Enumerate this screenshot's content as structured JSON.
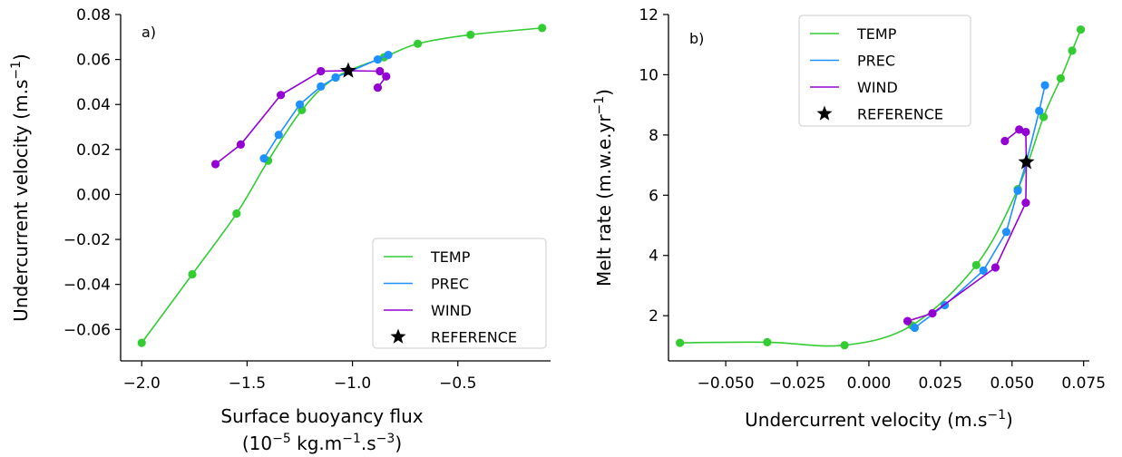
{
  "chart_data": [
    {
      "type": "line",
      "panel_label": "a)",
      "xlabel": "Surface buoyancy flux",
      "xlabel_unit": {
        "pre": "(10",
        "exp1": "−5",
        "mid": " kg.m",
        "exp2": "−1",
        "mid2": ".s",
        "exp3": "−3",
        "post": ")"
      },
      "ylabel": {
        "pre": "Undercurrent velocity (m.s",
        "exp": "−1",
        "post": ")"
      },
      "xlim": [
        -2.1,
        -0.06
      ],
      "ylim": [
        -0.074,
        0.08
      ],
      "xticks": [
        -2.0,
        -1.5,
        -1.0,
        -0.5
      ],
      "xtick_labels": [
        "−2.0",
        "−1.5",
        "−1.0",
        "−0.5"
      ],
      "yticks": [
        -0.06,
        -0.04,
        -0.02,
        0.0,
        0.02,
        0.04,
        0.06,
        0.08
      ],
      "ytick_labels": [
        "−0.06",
        "−0.04",
        "−0.02",
        "0.00",
        "0.02",
        "0.04",
        "0.06",
        "0.08"
      ],
      "grid": false,
      "legend_position": "lower-right",
      "series": [
        {
          "name": "TEMP",
          "color": "#33cc33",
          "smooth": true,
          "points": [
            [
              -2.0,
              -0.066
            ],
            [
              -1.76,
              -0.0355
            ],
            [
              -1.55,
              -0.0085
            ],
            [
              -1.4,
              0.015
            ],
            [
              -1.24,
              0.0375
            ],
            [
              -1.08,
              0.052
            ],
            [
              -0.85,
              0.061
            ],
            [
              -0.69,
              0.067
            ],
            [
              -0.44,
              0.071
            ],
            [
              -0.1,
              0.074
            ]
          ]
        },
        {
          "name": "PREC",
          "color": "#1e90ff",
          "smooth": false,
          "points": [
            [
              -1.42,
              0.016
            ],
            [
              -1.35,
              0.0265
            ],
            [
              -1.25,
              0.04
            ],
            [
              -1.15,
              0.048
            ],
            [
              -1.08,
              0.052
            ],
            [
              -0.88,
              0.06
            ],
            [
              -0.83,
              0.062
            ]
          ]
        },
        {
          "name": "WIND",
          "color": "#9400d3",
          "smooth": false,
          "points": [
            [
              -1.65,
              0.0135
            ],
            [
              -1.53,
              0.0222
            ],
            [
              -1.34,
              0.0442
            ],
            [
              -1.15,
              0.0548
            ],
            [
              -1.02,
              0.055
            ],
            [
              -0.87,
              0.0548
            ],
            [
              -0.84,
              0.0525
            ],
            [
              -0.88,
              0.0475
            ]
          ]
        }
      ],
      "reference": {
        "name": "REFERENCE",
        "point": [
          -1.02,
          0.055
        ]
      }
    },
    {
      "type": "line",
      "panel_label": "b)",
      "xlabel": {
        "pre": "Undercurrent velocity (m.s",
        "exp": "−1",
        "post": ")"
      },
      "ylabel": {
        "pre": "Melt rate (m.w.e.yr",
        "exp": "−1",
        "post": ")"
      },
      "xlim": [
        -0.07,
        0.077
      ],
      "ylim": [
        0.5,
        12.0
      ],
      "xticks": [
        -0.05,
        -0.025,
        0.0,
        0.025,
        0.05,
        0.075
      ],
      "xtick_labels": [
        "−0.050",
        "−0.025",
        "0.000",
        "0.025",
        "0.050",
        "0.075"
      ],
      "yticks": [
        2,
        4,
        6,
        8,
        10,
        12
      ],
      "ytick_labels": [
        "2",
        "4",
        "6",
        "8",
        "10",
        "12"
      ],
      "grid": false,
      "legend_position": "upper-left",
      "series": [
        {
          "name": "TEMP",
          "color": "#33cc33",
          "smooth": true,
          "points": [
            [
              -0.066,
              1.1
            ],
            [
              -0.0355,
              1.12
            ],
            [
              -0.0085,
              1.02
            ],
            [
              0.015,
              1.68
            ],
            [
              0.0375,
              3.68
            ],
            [
              0.052,
              6.2
            ],
            [
              0.061,
              8.6
            ],
            [
              0.067,
              9.88
            ],
            [
              0.071,
              10.8
            ],
            [
              0.074,
              11.5
            ]
          ]
        },
        {
          "name": "PREC",
          "color": "#1e90ff",
          "smooth": false,
          "points": [
            [
              0.016,
              1.6
            ],
            [
              0.0265,
              2.35
            ],
            [
              0.04,
              3.5
            ],
            [
              0.048,
              4.78
            ],
            [
              0.052,
              6.15
            ],
            [
              0.055,
              7.1
            ],
            [
              0.0595,
              8.8
            ],
            [
              0.0615,
              9.65
            ]
          ]
        },
        {
          "name": "WIND",
          "color": "#9400d3",
          "smooth": false,
          "points": [
            [
              0.0135,
              1.82
            ],
            [
              0.0222,
              2.08
            ],
            [
              0.0442,
              3.6
            ],
            [
              0.0548,
              5.75
            ],
            [
              0.055,
              7.1
            ],
            [
              0.0548,
              8.1
            ],
            [
              0.0525,
              8.18
            ],
            [
              0.0475,
              7.8
            ]
          ]
        }
      ],
      "reference": {
        "name": "REFERENCE",
        "point": [
          0.055,
          7.1
        ]
      }
    }
  ]
}
